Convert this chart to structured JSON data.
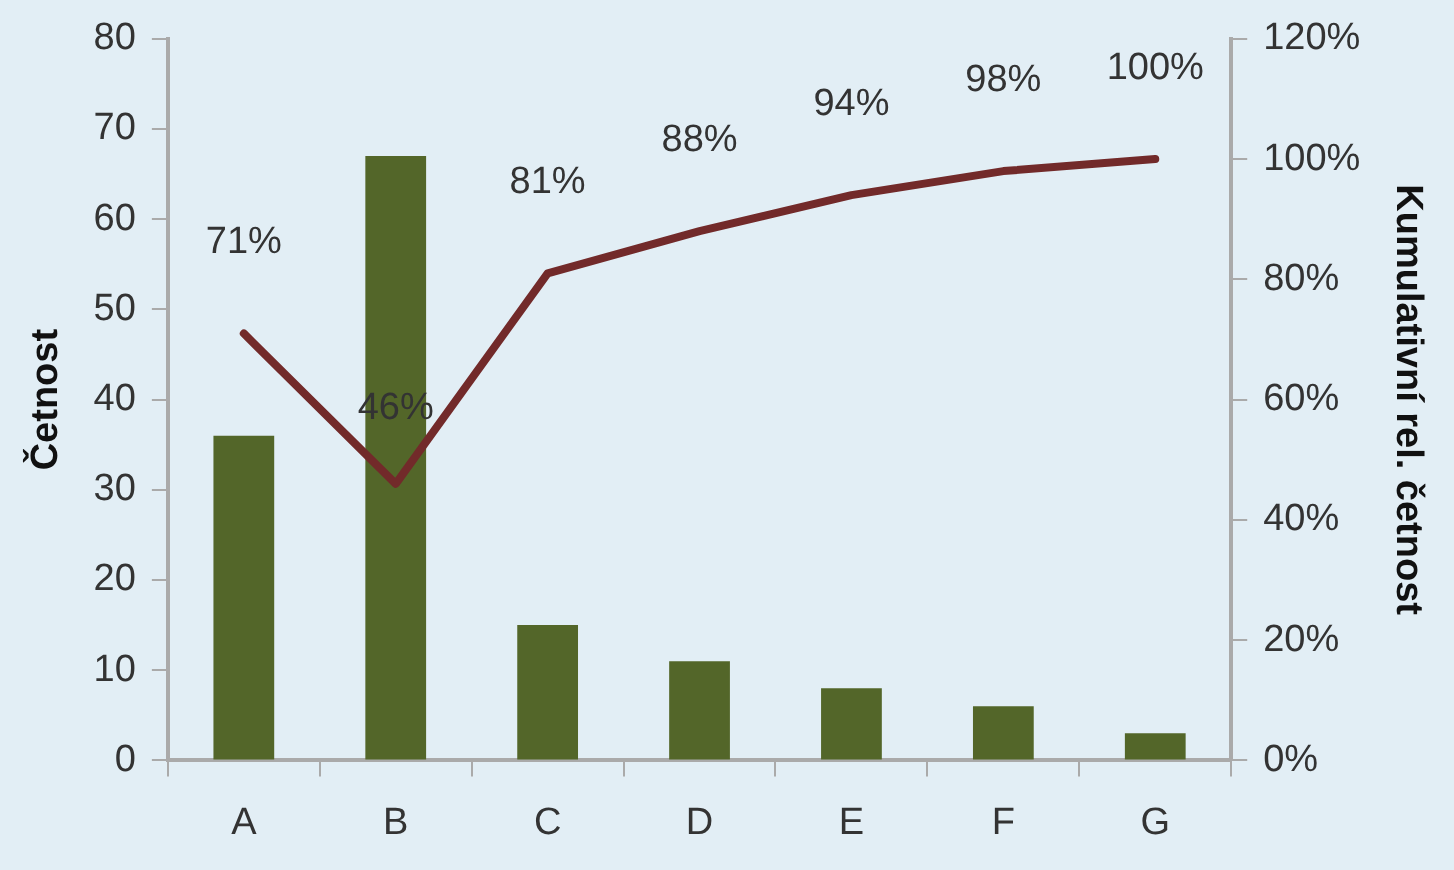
{
  "chart_data": {
    "type": "bar",
    "categories": [
      "A",
      "B",
      "C",
      "D",
      "E",
      "F",
      "G"
    ],
    "ylabel": "Četnost",
    "y2label": "Kumulativní rel. četnost",
    "ylim": [
      0,
      80
    ],
    "yticks": [
      0,
      10,
      20,
      30,
      40,
      50,
      60,
      70,
      80
    ],
    "y2lim": [
      0,
      120
    ],
    "y2ticks": [
      {
        "value": 0,
        "label": "0%"
      },
      {
        "value": 20,
        "label": "20%"
      },
      {
        "value": 40,
        "label": "40%"
      },
      {
        "value": 60,
        "label": "60%"
      },
      {
        "value": 80,
        "label": "80%"
      },
      {
        "value": 100,
        "label": "100%"
      },
      {
        "value": 120,
        "label": "120%"
      }
    ],
    "grid": false,
    "legend": false,
    "series": [
      {
        "color": "#536629",
        "values": [
          36,
          67,
          15,
          11,
          8,
          6,
          3
        ]
      },
      {
        "type": "line",
        "axis": "y2",
        "color": "#722a2a",
        "values": [
          71,
          46,
          81,
          88,
          94,
          98,
          100
        ],
        "value_labels": [
          "71%",
          "46%",
          "81%",
          "88%",
          "94%",
          "98%",
          "100%"
        ]
      }
    ]
  }
}
